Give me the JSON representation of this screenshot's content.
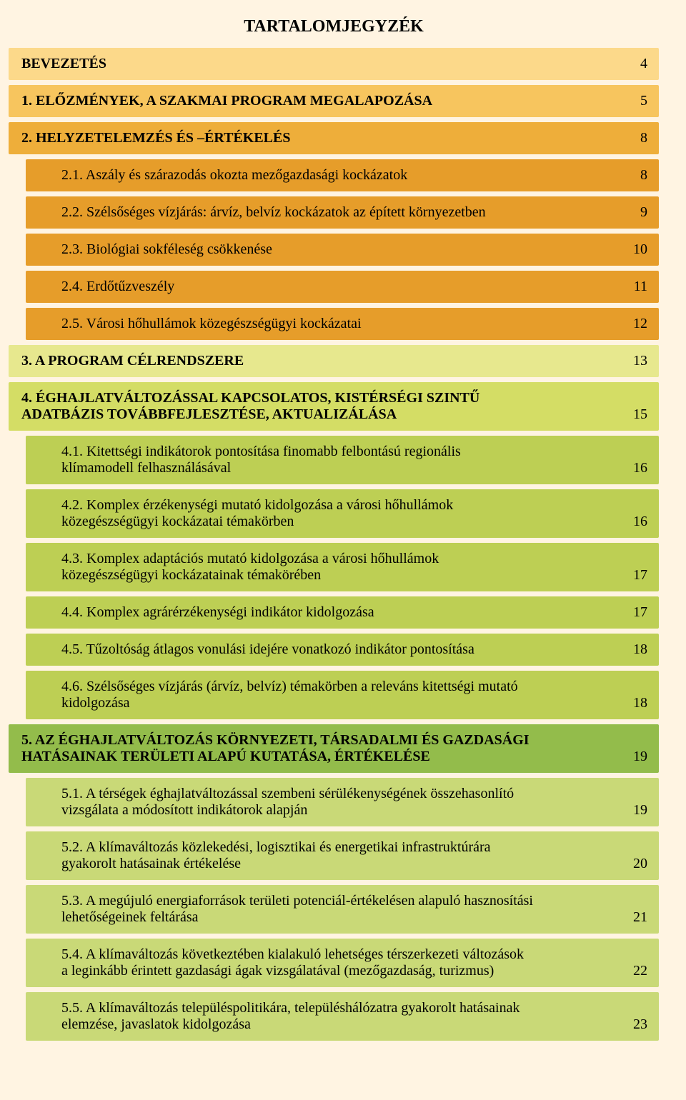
{
  "title": "TARTALOMJEGYZÉK",
  "colors": {
    "page_bg": "#fff4e2",
    "text": "#000000",
    "sec_bevezetes": "#fcd98a",
    "sec_1": "#f7c55e",
    "sec_2": "#eeae3a",
    "sec_3": "#e7e88e",
    "sec_4": "#d4dd65",
    "sec_5": "#93bc4b",
    "sub_2": "#e69d2a",
    "sub_4": "#bdcf54",
    "sub_5": "#c9d977"
  },
  "fonts": {
    "family": "Georgia, Times New Roman, serif",
    "title_size_pt": 18,
    "row_size_pt": 15
  },
  "toc": {
    "bevezetes": {
      "label": "BEVEZETÉS",
      "page": "4"
    },
    "s1": {
      "label": "1. ELŐZMÉNYEK, A SZAKMAI PROGRAM MEGALAPOZÁSA",
      "page": "5"
    },
    "s2": {
      "label": "2. HELYZETELEMZÉS ÉS –ÉRTÉKELÉS",
      "page": "8"
    },
    "s2_1": {
      "label": "2.1. Aszály és szárazodás okozta mezőgazdasági kockázatok",
      "page": "8"
    },
    "s2_2": {
      "label": "2.2. Szélsőséges vízjárás: árvíz, belvíz kockázatok az épített környezetben",
      "page": "9"
    },
    "s2_3": {
      "label": "2.3. Biológiai sokféleség csökkenése",
      "page": "10"
    },
    "s2_4": {
      "label": "2.4. Erdőtűzveszély",
      "page": "11"
    },
    "s2_5": {
      "label": "2.5. Városi hőhullámok közegészségügyi kockázatai",
      "page": "12"
    },
    "s3": {
      "label": "3. A PROGRAM CÉLRENDSZERE",
      "page": "13"
    },
    "s4": {
      "line1": "4. ÉGHAJLATVÁLTOZÁSSAL KAPCSOLATOS, KISTÉRSÉGI SZINTŰ",
      "line2": "ADATBÁZIS TOVÁBBFEJLESZTÉSE, AKTUALIZÁLÁSA",
      "page": "15"
    },
    "s4_1": {
      "line1": "4.1. Kitettségi indikátorok pontosítása finomabb felbontású regionális",
      "line2": "klímamodell felhasználásával",
      "page": "16"
    },
    "s4_2": {
      "line1": "4.2. Komplex érzékenységi mutató kidolgozása a városi hőhullámok",
      "line2": "közegészségügyi kockázatai témakörben",
      "page": "16"
    },
    "s4_3": {
      "line1": "4.3. Komplex adaptációs mutató kidolgozása a városi hőhullámok",
      "line2": "közegészségügyi kockázatainak témakörében",
      "page": "17"
    },
    "s4_4": {
      "label": "4.4. Komplex agrárérzékenységi indikátor kidolgozása",
      "page": "17"
    },
    "s4_5": {
      "label": "4.5. Tűzoltóság átlagos vonulási idejére vonatkozó indikátor pontosítása",
      "page": "18"
    },
    "s4_6": {
      "line1": "4.6. Szélsőséges vízjárás (árvíz, belvíz) témakörben a releváns kitettségi mutató",
      "line2": "kidolgozása",
      "page": "18"
    },
    "s5": {
      "line1": "5. AZ ÉGHAJLATVÁLTOZÁS KÖRNYEZETI, TÁRSADALMI ÉS GAZDASÁGI",
      "line2": "HATÁSAINAK TERÜLETI ALAPÚ KUTATÁSA, ÉRTÉKELÉSE",
      "page": "19"
    },
    "s5_1": {
      "line1": "5.1. A térségek éghajlatváltozással szembeni sérülékenységének összehasonlító",
      "line2": "vizsgálata a módosított indikátorok alapján",
      "page": "19"
    },
    "s5_2": {
      "line1": "5.2. A klímaváltozás közlekedési, logisztikai és energetikai infrastruktúrára",
      "line2": "gyakorolt hatásainak értékelése",
      "page": "20"
    },
    "s5_3": {
      "line1": "5.3. A megújuló energiaforrások területi potenciál-értékelésen alapuló hasznosítási",
      "line2": "lehetőségeinek feltárása",
      "page": "21"
    },
    "s5_4": {
      "line1": "5.4. A klímaváltozás következtében kialakuló lehetséges térszerkezeti változások",
      "line2": "a leginkább érintett gazdasági ágak vizsgálatával (mezőgazdaság, turizmus)",
      "page": "22"
    },
    "s5_5": {
      "line1": "5.5. A klímaváltozás településpolitikára, településhálózatra gyakorolt hatásainak",
      "line2": "elemzése, javaslatok kidolgozása",
      "page": "23"
    }
  }
}
